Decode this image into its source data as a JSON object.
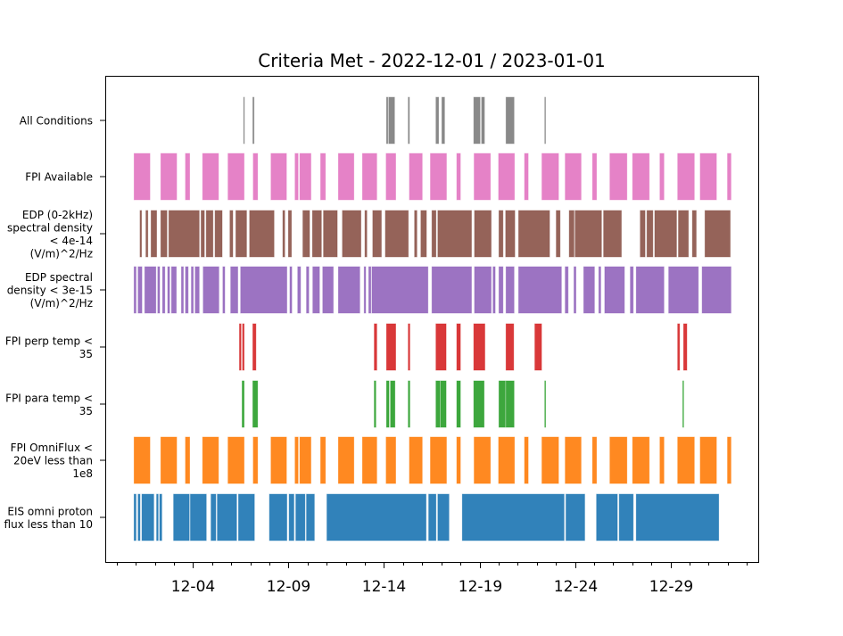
{
  "chart_data": {
    "type": "broken_barh",
    "title": "Criteria Met - 2022-12-01 / 2023-01-01",
    "xlabel": "",
    "ylabel": "",
    "x_units": "days since 2022-12-01",
    "xlim": [
      -1.6,
      32.6
    ],
    "x_major_ticks": [
      {
        "value": 3,
        "label": "12-04"
      },
      {
        "value": 8,
        "label": "12-09"
      },
      {
        "value": 13,
        "label": "12-14"
      },
      {
        "value": 18,
        "label": "12-19"
      },
      {
        "value": 23,
        "label": "12-24"
      },
      {
        "value": 28,
        "label": "12-29"
      }
    ],
    "x_minor_tick_step_days": 1,
    "grid": false,
    "series": [
      {
        "name": "All Conditions",
        "label_lines": [
          "All Conditions"
        ],
        "color": "#7f7f7f",
        "intervals": [
          [
            5.65,
            5.68
          ],
          [
            6.13,
            6.19
          ],
          [
            13.13,
            13.2
          ],
          [
            13.25,
            13.55
          ],
          [
            14.27,
            14.33
          ],
          [
            15.72,
            15.86
          ],
          [
            16.03,
            16.17
          ],
          [
            17.7,
            18.03
          ],
          [
            18.11,
            18.26
          ],
          [
            19.39,
            19.81
          ],
          [
            21.42,
            21.45
          ]
        ]
      },
      {
        "name": "FPI Available",
        "label_lines": [
          "FPI Available"
        ],
        "color": "#e377c2",
        "intervals": [
          [
            -0.09,
            0.74
          ],
          [
            1.31,
            2.14
          ],
          [
            2.6,
            2.82
          ],
          [
            3.5,
            4.33
          ],
          [
            4.83,
            5.67
          ],
          [
            6.15,
            6.38
          ],
          [
            7.08,
            7.89
          ],
          [
            8.34,
            8.5
          ],
          [
            8.59,
            9.17
          ],
          [
            9.68,
            9.93
          ],
          [
            10.61,
            11.42
          ],
          [
            11.87,
            12.62
          ],
          [
            13.11,
            13.61
          ],
          [
            14.33,
            15.0
          ],
          [
            15.43,
            16.27
          ],
          [
            16.81,
            17.0
          ],
          [
            17.72,
            18.57
          ],
          [
            19.0,
            19.83
          ],
          [
            20.36,
            20.55
          ],
          [
            21.27,
            22.14
          ],
          [
            22.49,
            23.32
          ],
          [
            23.92,
            24.13
          ],
          [
            24.83,
            25.72
          ],
          [
            26.02,
            26.89
          ],
          [
            27.45,
            27.66
          ],
          [
            28.38,
            29.25
          ],
          [
            29.56,
            30.41
          ],
          [
            30.99,
            31.17
          ]
        ]
      },
      {
        "name": "EDP (0-2kHz) spectral density < 4e-14 (V/m)^2/Hz",
        "label_lines": [
          "EDP (0-2kHz)",
          "spectral density",
          "< 4e-14",
          "(V/m)^2/Hz"
        ],
        "color": "#8c564b",
        "intervals": [
          [
            0.22,
            0.3
          ],
          [
            0.53,
            0.63
          ],
          [
            0.8,
            1.09
          ],
          [
            1.31,
            1.63
          ],
          [
            1.73,
            3.32
          ],
          [
            3.42,
            3.59
          ],
          [
            3.69,
            4.04
          ],
          [
            4.15,
            4.52
          ],
          [
            4.93,
            5.08
          ],
          [
            5.24,
            5.8
          ],
          [
            5.96,
            7.24
          ],
          [
            7.7,
            7.8
          ],
          [
            7.99,
            8.15
          ],
          [
            8.75,
            9.1
          ],
          [
            9.25,
            9.72
          ],
          [
            9.83,
            10.55
          ],
          [
            10.82,
            11.79
          ],
          [
            12.0,
            12.1
          ],
          [
            12.41,
            12.86
          ],
          [
            13.07,
            14.27
          ],
          [
            14.6,
            14.72
          ],
          [
            14.93,
            15.22
          ],
          [
            15.51,
            15.72
          ],
          [
            15.82,
            17.58
          ],
          [
            17.74,
            18.61
          ],
          [
            19.02,
            19.23
          ],
          [
            19.37,
            19.85
          ],
          [
            20.05,
            21.67
          ],
          [
            22.02,
            22.22
          ],
          [
            22.7,
            22.95
          ],
          [
            23.01,
            24.39
          ],
          [
            24.5,
            25.43
          ],
          [
            26.42,
            26.67
          ],
          [
            26.77,
            27.08
          ],
          [
            27.18,
            28.32
          ],
          [
            28.42,
            28.94
          ],
          [
            29.15,
            29.35
          ],
          [
            29.81,
            31.13
          ]
        ]
      },
      {
        "name": "EDP spectral density < 3e-15 (V/m)^2/Hz",
        "label_lines": [
          "EDP spectral",
          "density < 3e-15",
          "(V/m)^2/Hz"
        ],
        "color": "#9467bd",
        "intervals": [
          [
            -0.09,
            0.01
          ],
          [
            0.12,
            0.32
          ],
          [
            0.47,
            1.05
          ],
          [
            1.15,
            1.25
          ],
          [
            1.4,
            1.52
          ],
          [
            1.67,
            1.77
          ],
          [
            1.87,
            2.12
          ],
          [
            2.39,
            2.49
          ],
          [
            2.6,
            2.74
          ],
          [
            2.91,
            3.01
          ],
          [
            3.11,
            3.32
          ],
          [
            3.53,
            4.35
          ],
          [
            4.56,
            4.66
          ],
          [
            4.97,
            5.34
          ],
          [
            5.49,
            7.91
          ],
          [
            8.07,
            8.17
          ],
          [
            8.48,
            8.63
          ],
          [
            8.94,
            9.06
          ],
          [
            9.27,
            9.62
          ],
          [
            9.79,
            10.34
          ],
          [
            10.61,
            11.73
          ],
          [
            11.96,
            12.04
          ],
          [
            12.2,
            12.31
          ],
          [
            12.37,
            15.3
          ],
          [
            15.51,
            17.58
          ],
          [
            17.74,
            18.61
          ],
          [
            18.71,
            18.82
          ],
          [
            19.02,
            19.23
          ],
          [
            19.39,
            19.81
          ],
          [
            20.05,
            22.29
          ],
          [
            22.49,
            22.64
          ],
          [
            22.95,
            23.05
          ],
          [
            23.46,
            24.02
          ],
          [
            24.25,
            24.35
          ],
          [
            24.56,
            25.59
          ],
          [
            25.9,
            26.05
          ],
          [
            26.21,
            27.66
          ],
          [
            27.91,
            29.46
          ],
          [
            29.66,
            31.17
          ]
        ]
      },
      {
        "name": "FPI perp temp < 35",
        "label_lines": [
          "FPI perp temp <",
          "35"
        ],
        "color": "#d62728",
        "intervals": [
          [
            5.43,
            5.51
          ],
          [
            5.59,
            5.67
          ],
          [
            6.13,
            6.29
          ],
          [
            12.49,
            12.62
          ],
          [
            13.13,
            13.61
          ],
          [
            14.27,
            14.35
          ],
          [
            15.72,
            16.25
          ],
          [
            16.81,
            17.0
          ],
          [
            17.7,
            18.28
          ],
          [
            19.39,
            19.79
          ],
          [
            20.9,
            21.25
          ],
          [
            28.38,
            28.48
          ],
          [
            28.69,
            28.86
          ]
        ]
      },
      {
        "name": "FPI para temp < 35",
        "label_lines": [
          "FPI para temp <",
          "35"
        ],
        "color": "#2ca02c",
        "intervals": [
          [
            5.57,
            5.67
          ],
          [
            6.13,
            6.38
          ],
          [
            12.49,
            12.57
          ],
          [
            13.13,
            13.26
          ],
          [
            13.34,
            13.57
          ],
          [
            14.27,
            14.35
          ],
          [
            15.72,
            15.92
          ],
          [
            15.96,
            16.25
          ],
          [
            16.81,
            17.0
          ],
          [
            17.7,
            18.24
          ],
          [
            19.02,
            19.35
          ],
          [
            19.39,
            19.81
          ],
          [
            21.42,
            21.46
          ],
          [
            28.65,
            28.69
          ]
        ]
      },
      {
        "name": "FPI OmniFlux < 20eV less than 1e8",
        "label_lines": [
          "FPI OmniFlux <",
          "20eV less than",
          "1e8"
        ],
        "color": "#ff7f0e",
        "intervals": [
          [
            -0.09,
            0.74
          ],
          [
            1.31,
            2.14
          ],
          [
            2.6,
            2.82
          ],
          [
            3.5,
            4.33
          ],
          [
            4.83,
            5.67
          ],
          [
            6.15,
            6.38
          ],
          [
            7.08,
            7.89
          ],
          [
            8.34,
            8.5
          ],
          [
            8.59,
            9.17
          ],
          [
            9.68,
            9.93
          ],
          [
            10.61,
            11.42
          ],
          [
            11.87,
            12.62
          ],
          [
            13.11,
            13.61
          ],
          [
            14.33,
            15.0
          ],
          [
            15.43,
            16.27
          ],
          [
            16.81,
            17.0
          ],
          [
            17.72,
            18.57
          ],
          [
            19.0,
            19.83
          ],
          [
            20.36,
            20.55
          ],
          [
            21.27,
            22.14
          ],
          [
            22.49,
            23.32
          ],
          [
            23.92,
            24.13
          ],
          [
            24.83,
            25.72
          ],
          [
            26.02,
            26.89
          ],
          [
            27.45,
            27.66
          ],
          [
            28.38,
            29.25
          ],
          [
            29.56,
            30.41
          ],
          [
            30.99,
            31.17
          ]
        ]
      },
      {
        "name": "EIS omni proton flux less than 10",
        "label_lines": [
          "EIS omni proton",
          "flux less than 10"
        ],
        "color": "#1f77b4",
        "intervals": [
          [
            -0.09,
            0.01
          ],
          [
            0.12,
            0.22
          ],
          [
            0.32,
            0.94
          ],
          [
            1.09,
            1.17
          ],
          [
            1.25,
            1.36
          ],
          [
            1.98,
            2.8
          ],
          [
            2.86,
            3.69
          ],
          [
            3.94,
            4.19
          ],
          [
            4.27,
            5.28
          ],
          [
            5.38,
            6.21
          ],
          [
            7.0,
            7.91
          ],
          [
            8.03,
            8.28
          ],
          [
            8.38,
            8.86
          ],
          [
            8.94,
            9.35
          ],
          [
            10.01,
            15.2
          ],
          [
            15.34,
            15.72
          ],
          [
            15.82,
            16.4
          ],
          [
            17.1,
            22.43
          ],
          [
            22.53,
            23.51
          ],
          [
            24.13,
            25.22
          ],
          [
            25.32,
            26.05
          ],
          [
            26.21,
            30.53
          ]
        ]
      }
    ]
  }
}
